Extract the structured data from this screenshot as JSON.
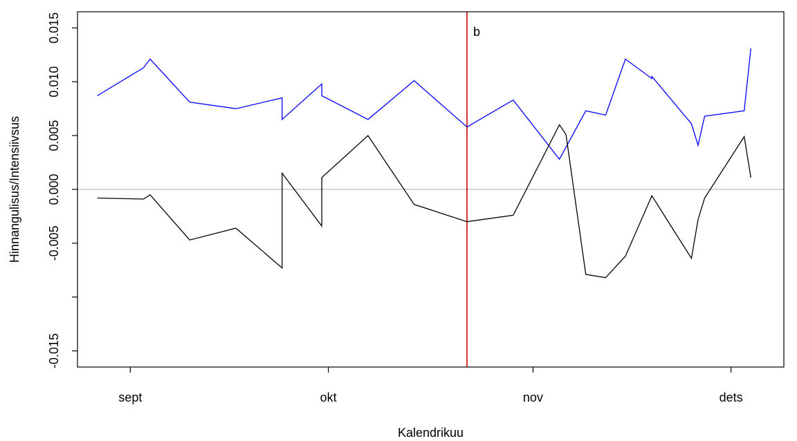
{
  "chart_data": {
    "type": "line",
    "xlabel": "Kalendrikuu",
    "ylabel": "Hinnangulisus/Intensiivsus",
    "x_domain": [
      "2024-08-24",
      "2024-12-09"
    ],
    "ylim": [
      -0.0165,
      0.0165
    ],
    "y_ticks": [
      -0.015,
      -0.01,
      -0.005,
      0.0,
      0.005,
      0.01,
      0.015
    ],
    "y_tick_labels": [
      "-0.015",
      "",
      "-0.005",
      "0.000",
      "0.005",
      "0.010",
      "0.015"
    ],
    "x_ticks": [
      {
        "date": "2024-09-01",
        "label": "sept"
      },
      {
        "date": "2024-10-01",
        "label": "okt"
      },
      {
        "date": "2024-11-01",
        "label": "nov"
      },
      {
        "date": "2024-12-01",
        "label": "dets"
      }
    ],
    "hline": {
      "y": 0,
      "color": "#bebebe"
    },
    "vline": {
      "x": "2024-10-22",
      "color": "#cc0000",
      "label": "b"
    },
    "series": [
      {
        "color": "#0000ff",
        "points": [
          [
            "2024-08-27",
            0.0087
          ],
          [
            "2024-09-03",
            0.0113
          ],
          [
            "2024-09-04",
            0.0121
          ],
          [
            "2024-09-10",
            0.0081
          ],
          [
            "2024-09-17",
            0.0075
          ],
          [
            "2024-09-24",
            0.0085
          ],
          [
            "2024-09-24",
            0.0065
          ],
          [
            "2024-09-30",
            0.0098
          ],
          [
            "2024-09-30",
            0.0087
          ],
          [
            "2024-10-07",
            0.0065
          ],
          [
            "2024-10-14",
            0.0101
          ],
          [
            "2024-10-22",
            0.0058
          ],
          [
            "2024-10-29",
            0.0083
          ],
          [
            "2024-11-05",
            0.0028
          ],
          [
            "2024-11-09",
            0.0073
          ],
          [
            "2024-11-12",
            0.0069
          ],
          [
            "2024-11-15",
            0.0121
          ],
          [
            "2024-11-19",
            0.0103
          ],
          [
            "2024-11-19",
            0.0105
          ],
          [
            "2024-11-25",
            0.0061
          ],
          [
            "2024-11-26",
            0.0041
          ],
          [
            "2024-11-27",
            0.0068
          ],
          [
            "2024-12-03",
            0.0073
          ],
          [
            "2024-12-04",
            0.0131
          ]
        ]
      },
      {
        "color": "#000000",
        "points": [
          [
            "2024-08-27",
            -0.0008
          ],
          [
            "2024-09-03",
            -0.0009
          ],
          [
            "2024-09-04",
            -0.0005
          ],
          [
            "2024-09-10",
            -0.0047
          ],
          [
            "2024-09-17",
            -0.0036
          ],
          [
            "2024-09-24",
            -0.0073
          ],
          [
            "2024-09-24",
            0.0015
          ],
          [
            "2024-09-30",
            -0.0034
          ],
          [
            "2024-09-30",
            0.0011
          ],
          [
            "2024-10-07",
            0.005
          ],
          [
            "2024-10-14",
            -0.0014
          ],
          [
            "2024-10-22",
            -0.003
          ],
          [
            "2024-10-29",
            -0.0024
          ],
          [
            "2024-11-05",
            0.006
          ],
          [
            "2024-11-06",
            0.0051
          ],
          [
            "2024-11-09",
            -0.0079
          ],
          [
            "2024-11-12",
            -0.0082
          ],
          [
            "2024-11-15",
            -0.0062
          ],
          [
            "2024-11-19",
            -0.0006
          ],
          [
            "2024-11-25",
            -0.0064
          ],
          [
            "2024-11-26",
            -0.0028
          ],
          [
            "2024-11-27",
            -0.0008
          ],
          [
            "2024-12-03",
            0.0049
          ],
          [
            "2024-12-04",
            0.0011
          ]
        ]
      }
    ]
  }
}
